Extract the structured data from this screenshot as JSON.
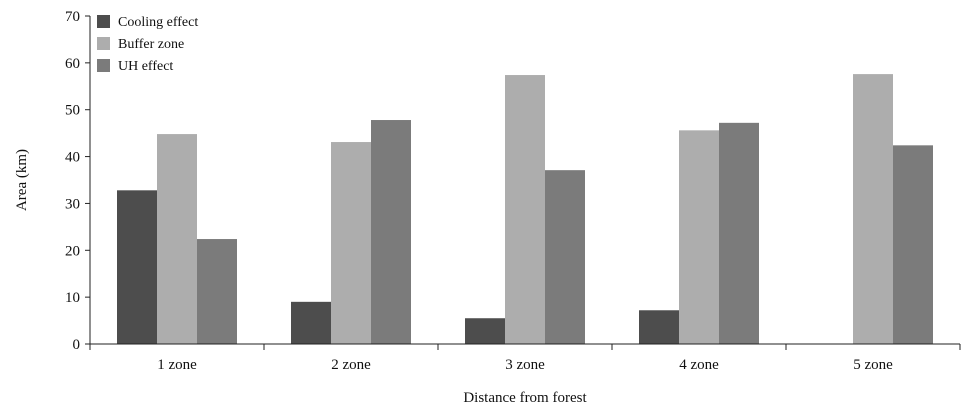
{
  "chart_data": {
    "type": "bar",
    "title": "",
    "xlabel": "Distance from forest",
    "ylabel": "Area (km)",
    "ylim": [
      0,
      70
    ],
    "yticks": [
      0,
      10,
      20,
      30,
      40,
      50,
      60,
      70
    ],
    "grid": false,
    "legend_position": "top-left",
    "categories": [
      "1 zone",
      "2 zone",
      "3 zone",
      "4 zone",
      "5 zone"
    ],
    "series": [
      {
        "name": "Cooling effect",
        "color": "#4d4d4d",
        "values": [
          32.8,
          9.0,
          5.5,
          7.2,
          0
        ]
      },
      {
        "name": "Buffer zone",
        "color": "#adadad",
        "values": [
          44.8,
          43.1,
          57.4,
          45.6,
          57.6
        ]
      },
      {
        "name": "UH effect",
        "color": "#7b7b7b",
        "values": [
          22.4,
          47.8,
          37.1,
          47.2,
          42.4
        ]
      }
    ]
  }
}
